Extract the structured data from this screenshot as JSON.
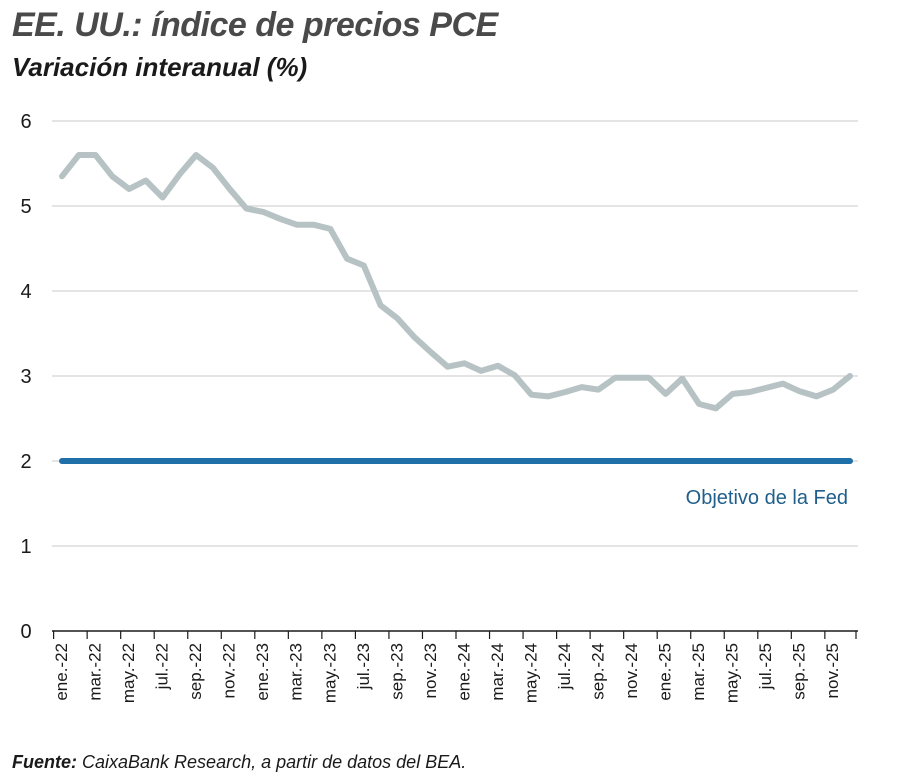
{
  "title": "EE. UU.: índice de precios PCE",
  "subtitle": "Variación interanual (%)",
  "source_label": "Fuente:",
  "source_text": " CaixaBank Research, a partir de datos del BEA.",
  "colors": {
    "series": "#b7c2c4",
    "target": "#1f6fa8",
    "grid": "#c8c8c8",
    "axis": "#1a1a1a"
  },
  "chart_data": {
    "type": "line",
    "ylim": [
      0,
      6
    ],
    "yticks": [
      0,
      1,
      2,
      3,
      4,
      5,
      6
    ],
    "grid": true,
    "xtick_labels": [
      "ene.-22",
      "mar.-22",
      "may.-22",
      "jul.-22",
      "sep.-22",
      "nov.-22",
      "ene.-23",
      "mar.-23",
      "may.-23",
      "jul.-23",
      "sep.-23",
      "nov.-23",
      "ene.-24",
      "mar.-24",
      "may.-24",
      "jul.-24",
      "sep.-24",
      "nov.-24",
      "ene.-25",
      "mar.-25",
      "may.-25",
      "jul.-25",
      "sep.-25",
      "nov.-25"
    ],
    "x": [
      "ene.-22",
      "feb.-22",
      "mar.-22",
      "abr.-22",
      "may.-22",
      "jun.-22",
      "jul.-22",
      "ago.-22",
      "sep.-22",
      "oct.-22",
      "nov.-22",
      "dic.-22",
      "ene.-23",
      "feb.-23",
      "mar.-23",
      "abr.-23",
      "may.-23",
      "jun.-23",
      "jul.-23",
      "ago.-23",
      "sep.-23",
      "oct.-23",
      "nov.-23",
      "dic.-23",
      "ene.-24",
      "feb.-24",
      "mar.-24",
      "abr.-24",
      "may.-24",
      "jun.-24",
      "jul.-24",
      "ago.-24",
      "sep.-24",
      "oct.-24",
      "nov.-24",
      "dic.-24",
      "ene.-25",
      "feb.-25",
      "mar.-25",
      "abr.-25",
      "may.-25",
      "jun.-25",
      "jul.-25",
      "ago.-25",
      "sep.-25",
      "oct.-25",
      "nov.-25",
      "dic.-25"
    ],
    "series": [
      {
        "values": [
          5.35,
          5.6,
          5.6,
          5.35,
          5.2,
          5.3,
          5.1,
          5.37,
          5.6,
          5.45,
          5.2,
          4.97,
          4.93,
          4.85,
          4.78,
          4.78,
          4.73,
          4.38,
          4.3,
          3.83,
          3.68,
          3.46,
          3.28,
          3.11,
          3.15,
          3.06,
          3.12,
          3.01,
          2.78,
          2.76,
          2.81,
          2.87,
          2.84,
          2.98,
          2.98,
          2.98,
          2.79,
          2.97,
          2.67,
          2.62,
          2.79,
          2.81,
          2.86,
          2.91,
          2.82,
          2.76,
          2.84,
          3.0
        ]
      }
    ],
    "target": {
      "value": 2,
      "label": "Objetivo de la Fed"
    }
  }
}
